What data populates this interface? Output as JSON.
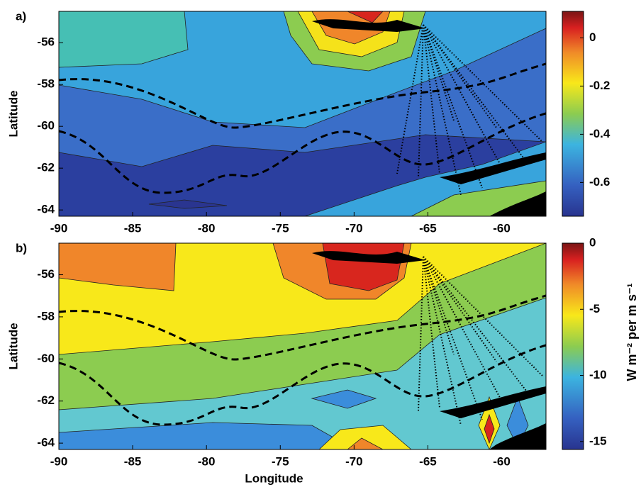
{
  "chart_data": [
    {
      "type": "contour",
      "panel_label": "a)",
      "ylabel": "Latitude",
      "xlim": [
        -90,
        -57
      ],
      "ylim": [
        -64.3,
        -54.5
      ],
      "xticks": [
        -90,
        -85,
        -80,
        -75,
        -70,
        -65,
        -60
      ],
      "yticks": [
        -64,
        -62,
        -60,
        -58,
        -56
      ],
      "colorbar": {
        "clim": [
          -0.74,
          0.11
        ],
        "ticks": [
          -0.6,
          -0.4,
          -0.2,
          0
        ]
      }
    },
    {
      "type": "contour",
      "panel_label": "b)",
      "ylabel": "Latitude",
      "xlabel": "Longitude",
      "xlim": [
        -90,
        -57
      ],
      "ylim": [
        -64.3,
        -54.5
      ],
      "xticks": [
        -90,
        -85,
        -80,
        -75,
        -70,
        -65,
        -60
      ],
      "yticks": [
        -64,
        -62,
        -60,
        -58,
        -56
      ],
      "colorbar": {
        "clim": [
          -15.6,
          0
        ],
        "ticks": [
          -15,
          -10,
          -5,
          0
        ],
        "label": "W m⁻² per m s⁻¹"
      }
    }
  ]
}
